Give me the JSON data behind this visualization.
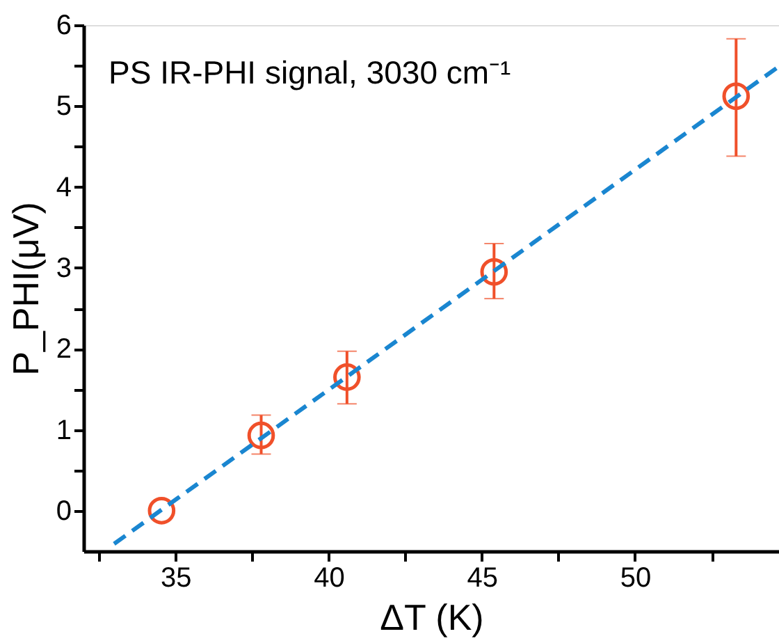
{
  "chart_data": {
    "type": "scatter",
    "xlabel": "ΔT (K)",
    "ylabel": "P_PHI(μV)",
    "annotations": [
      "PS IR-PHI signal, 3030 cm⁻¹"
    ],
    "x": [
      34.55,
      37.8,
      40.6,
      45.4,
      53.3
    ],
    "series": [
      {
        "color": "#f0502a",
        "values": [
          0,
          0.93,
          1.65,
          2.95,
          5.12
        ],
        "errors": [
          null,
          [
            0.7,
            1.18
          ],
          [
            1.32,
            1.97
          ],
          [
            2.62,
            3.3
          ],
          [
            4.38,
            5.83
          ]
        ],
        "marker": "circle"
      },
      {
        "type": "line",
        "color": "#1a86d0",
        "x": [
          33.0,
          54.7
        ],
        "values": [
          -0.41,
          5.49
        ],
        "line_style": "dashed"
      }
    ],
    "xlim": [
      32,
      54.7
    ],
    "xticks": [
      {
        "value": 32.5,
        "label": null
      },
      35,
      {
        "value": 37.5,
        "label": null
      },
      40,
      {
        "value": 42.5,
        "label": null
      },
      45,
      {
        "value": 47.5,
        "label": null
      },
      50,
      {
        "value": 52.5,
        "label": null
      }
    ],
    "ylim": [
      -0.5,
      6
    ],
    "yticks": [
      0,
      {
        "value": 0.5,
        "label": null
      },
      1,
      {
        "value": 1.5,
        "label": null
      },
      2,
      {
        "value": 2.5,
        "label": null
      },
      3,
      {
        "value": 3.5,
        "label": null
      },
      4,
      {
        "value": 4.5,
        "label": null
      },
      5,
      {
        "value": 5.5,
        "label": null
      },
      6
    ],
    "grid": false
  }
}
